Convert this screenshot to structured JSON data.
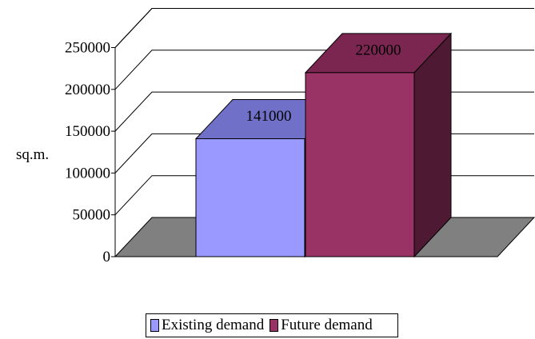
{
  "chart_data": {
    "type": "bar",
    "ylabel": "sq.m.",
    "ylim": [
      0,
      250000
    ],
    "yticks": [
      "0",
      "50000",
      "100000",
      "150000",
      "200000",
      "250000"
    ],
    "series": [
      {
        "name": "Existing demand",
        "value": 141000,
        "label": "141000",
        "colors": {
          "front": "#9999ff",
          "top": "#7070c8",
          "side": "#5a5aa0"
        }
      },
      {
        "name": "Future demand",
        "value": 220000,
        "label": "220000",
        "colors": {
          "front": "#993366",
          "top": "#7a2650",
          "side": "#4e1a33"
        }
      }
    ],
    "floor_color": "#808080",
    "grid": true,
    "legend_position": "bottom"
  }
}
